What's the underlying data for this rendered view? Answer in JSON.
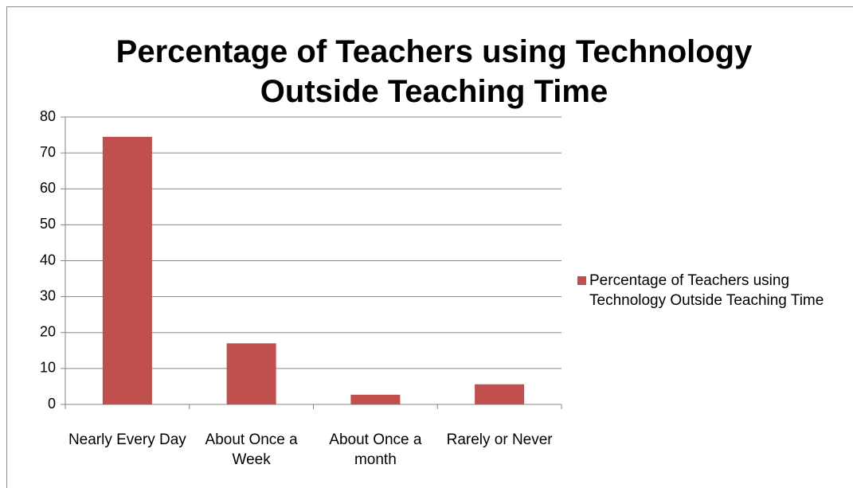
{
  "chart_data": {
    "type": "bar",
    "title": "Percentage of Teachers using Technology Outside Teaching Time",
    "categories": [
      "Nearly Every Day",
      "About Once a Week",
      "About Once a month",
      "Rarely or Never"
    ],
    "series": [
      {
        "name": "Percentage of Teachers using Technology Outside Teaching Time",
        "color": "#c0504d",
        "values": [
          74.5,
          17,
          2.7,
          5.6
        ]
      }
    ],
    "ylim": [
      0,
      80
    ],
    "yticks": [
      0,
      10,
      20,
      30,
      40,
      50,
      60,
      70,
      80
    ],
    "grid": true,
    "legend": "right"
  }
}
